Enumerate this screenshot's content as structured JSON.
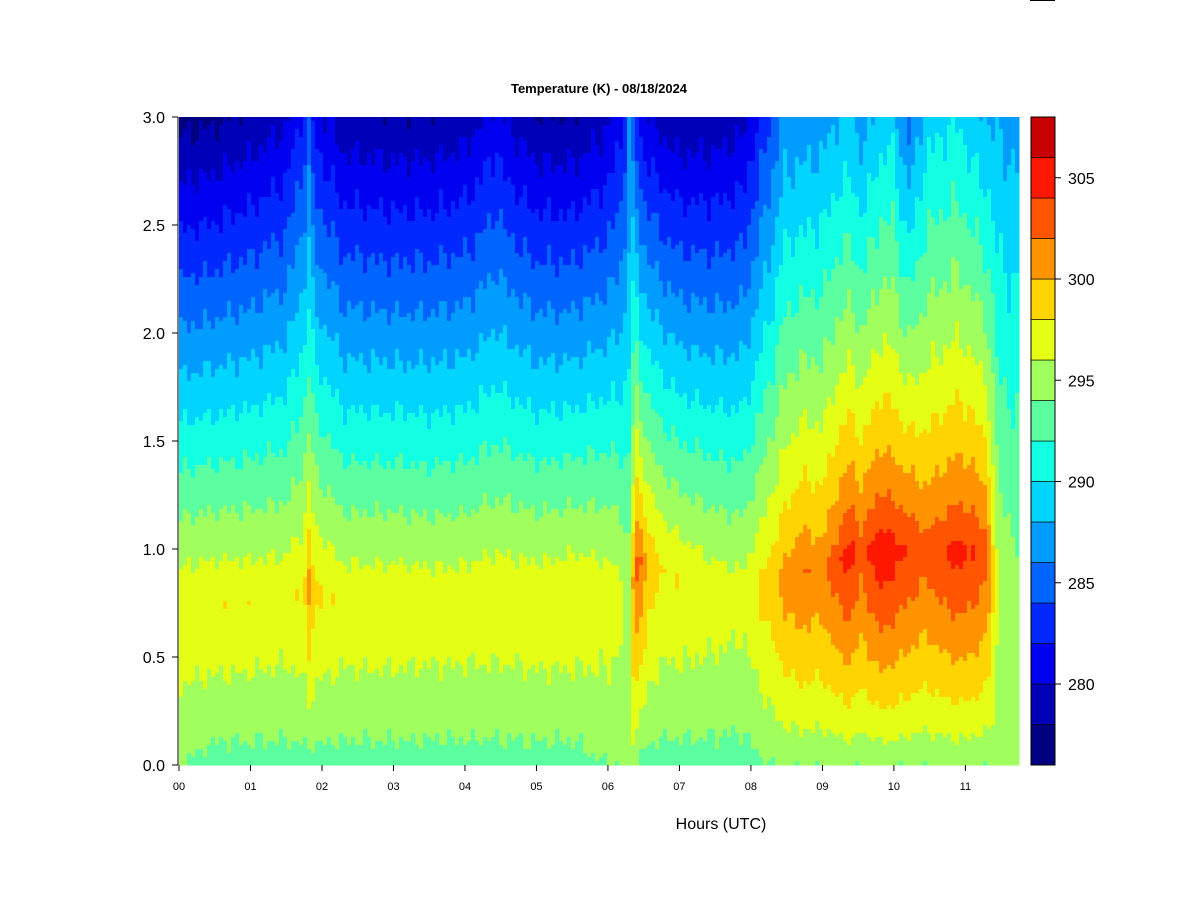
{
  "chart_data": {
    "type": "heatmap",
    "title": "Temperature (K) - 08/18/2024",
    "xlabel": "Hours (UTC)",
    "ylabel": "",
    "x_tick_labels": [
      "00",
      "01",
      "02",
      "03",
      "04",
      "05",
      "06",
      "07",
      "08",
      "09",
      "10",
      "11"
    ],
    "x_ticks": [
      0,
      1,
      2,
      3,
      4,
      5,
      6,
      7,
      8,
      9,
      10,
      11
    ],
    "xlim": [
      0,
      11.75
    ],
    "y_tick_labels": [
      "0.0",
      "0.5",
      "1.0",
      "1.5",
      "2.0",
      "2.5",
      "3.0"
    ],
    "y_ticks": [
      0,
      0.5,
      1.0,
      1.5,
      2.0,
      2.5,
      3.0
    ],
    "ylim": [
      0,
      3.0
    ],
    "colorbar": {
      "levels": [
        276,
        278,
        280,
        282,
        284,
        286,
        288,
        290,
        292,
        294,
        296,
        298,
        300,
        302,
        304,
        306,
        308
      ],
      "colors": [
        "#000080",
        "#0000b8",
        "#0000f0",
        "#0028ff",
        "#0064ff",
        "#009cff",
        "#00d4ff",
        "#13ffe4",
        "#5cffa0",
        "#a0ff5c",
        "#e4ff13",
        "#ffd400",
        "#ff9400",
        "#ff5400",
        "#ff1800",
        "#c80000",
        "#800000"
      ],
      "tick_labels": [
        "280",
        "285",
        "290",
        "295",
        "300",
        "305"
      ],
      "tick_values": [
        280,
        285,
        290,
        295,
        300,
        305
      ]
    },
    "field_description": "Temperature profile vs height (0-3) and time (00-11.7 UTC): near-surface ~293-296 K, warm layer 296-300 K around 0.5-1.0, cooling aloft to ~277 K at 3.0; strong warm columns near 06.4 and 08.4-11.3 reaching ~306 K",
    "column_profiles": {
      "time": [
        0.0,
        0.5,
        1.0,
        1.5,
        1.75,
        1.82,
        1.9,
        2.3,
        3.0,
        3.5,
        4.0,
        4.45,
        4.55,
        5.0,
        5.5,
        6.0,
        6.2,
        6.3,
        6.38,
        6.45,
        6.6,
        6.8,
        7.0,
        7.5,
        7.9,
        8.35,
        8.45,
        8.7,
        9.0,
        9.25,
        9.4,
        9.55,
        9.8,
        10.0,
        10.2,
        10.45,
        10.7,
        10.9,
        11.1,
        11.3,
        11.45,
        11.75
      ],
      "surface_K": [
        294,
        293,
        293,
        293,
        293,
        293,
        293,
        293,
        293,
        293,
        293,
        293,
        293,
        293,
        293,
        294,
        294,
        296,
        294,
        293,
        293,
        293,
        293,
        293,
        293,
        294,
        294,
        294,
        294,
        294,
        294,
        294,
        294,
        294,
        294,
        294,
        294,
        294,
        294,
        294,
        295,
        295
      ],
      "peak_K": [
        297.5,
        297.8,
        297.7,
        297.5,
        298.2,
        300.5,
        298.4,
        297.5,
        297.6,
        297.4,
        297.4,
        297.6,
        297.5,
        297.6,
        297.7,
        297.2,
        296.6,
        295.5,
        302.8,
        302.3,
        299.0,
        298.0,
        297.8,
        297.2,
        296.8,
        299.8,
        300.8,
        302.0,
        301.5,
        304.0,
        305.0,
        303.0,
        305.8,
        305.0,
        304.0,
        303.0,
        304.2,
        304.8,
        304.2,
        303.0,
        296.0,
        294.5
      ],
      "peak_height": [
        0.75,
        0.75,
        0.75,
        0.78,
        0.8,
        0.85,
        0.8,
        0.75,
        0.75,
        0.75,
        0.75,
        0.8,
        0.78,
        0.75,
        0.78,
        0.8,
        0.8,
        0.8,
        0.9,
        0.95,
        0.95,
        0.9,
        0.85,
        0.8,
        0.8,
        0.85,
        0.85,
        0.9,
        0.9,
        0.95,
        1.0,
        1.0,
        1.0,
        1.0,
        1.0,
        1.0,
        1.0,
        1.0,
        1.0,
        1.0,
        0.85,
        0.8
      ],
      "aloft_K": [
        277.2,
        277.6,
        278.4,
        279.6,
        282.5,
        284.0,
        281.0,
        278.6,
        278.2,
        278.3,
        278.8,
        280.8,
        279.8,
        278.2,
        278.0,
        279.5,
        281.5,
        286.0,
        283.5,
        281.0,
        279.8,
        279.0,
        278.4,
        278.6,
        279.3,
        284.8,
        286.5,
        286.6,
        287.0,
        288.0,
        288.2,
        286.8,
        288.8,
        289.0,
        285.0,
        289.0,
        289.5,
        289.8,
        288.6,
        288.0,
        287.6,
        287.2
      ],
      "decay": [
        1.0,
        1.0,
        1.0,
        1.0,
        1.0,
        0.85,
        1.0,
        1.0,
        1.0,
        1.0,
        1.0,
        0.95,
        1.0,
        1.0,
        1.0,
        1.0,
        0.95,
        0.8,
        0.9,
        0.85,
        0.95,
        1.0,
        1.0,
        1.0,
        1.0,
        0.9,
        0.85,
        0.85,
        0.85,
        0.8,
        0.75,
        0.85,
        0.75,
        0.75,
        0.9,
        0.8,
        0.75,
        0.75,
        0.8,
        0.8,
        0.95,
        1.0
      ]
    }
  }
}
